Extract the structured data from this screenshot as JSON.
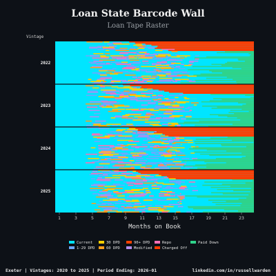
{
  "header": {
    "title": "Loan State Barcode Wall",
    "subtitle": "Loan Tape Raster"
  },
  "footer": {
    "left": "Exeter | Vintages: 2020 to 2025 | Period Ending: 2026-01",
    "right": "linkedin.com/in/russellwarden"
  },
  "chart_data": {
    "type": "heatmap",
    "title": "Loan State Barcode Wall",
    "subtitle": "Loan Tape Raster",
    "xlabel": "Months on Book",
    "ylabel": "Vintage",
    "x_range": [
      0,
      24
    ],
    "x_ticks": [
      1,
      3,
      5,
      7,
      9,
      11,
      13,
      15,
      17,
      19,
      21,
      23
    ],
    "vintages": [
      "2022",
      "2023",
      "2024",
      "2025"
    ],
    "grid": false,
    "legend_position": "bottom",
    "states": [
      {
        "label": "Current",
        "color": "#00e5ff"
      },
      {
        "label": "1-29 DPD",
        "color": "#6ea8fe"
      },
      {
        "label": "30 DPD",
        "color": "#ffd000"
      },
      {
        "label": "60 DPD",
        "color": "#ff9f1c"
      },
      {
        "label": "90+ DPD",
        "color": "#ff4000"
      },
      {
        "label": "Modified",
        "color": "#b48ef0"
      },
      {
        "label": "Repo",
        "color": "#ff6fb5"
      },
      {
        "label": "Charged Off",
        "color": "#ff3b00"
      },
      {
        "label": "Paid Down",
        "color": "#2fd38a"
      }
    ]
  },
  "colors": {
    "background": "#0d1117",
    "text": "#e6e6e6",
    "muted": "#9aa0a6",
    "separator": "#0d1117"
  }
}
